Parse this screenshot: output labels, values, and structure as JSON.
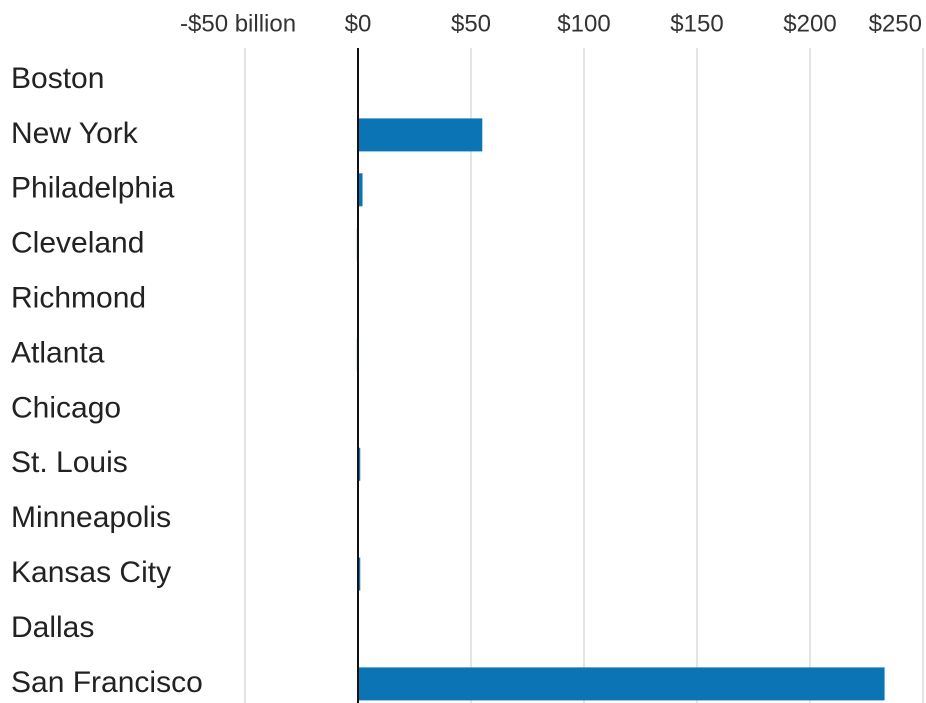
{
  "chart_data": {
    "type": "bar",
    "orientation": "horizontal",
    "categories": [
      "Boston",
      "New York",
      "Philadelphia",
      "Cleveland",
      "Richmond",
      "Atlanta",
      "Chicago",
      "St. Louis",
      "Minneapolis",
      "Kansas City",
      "Dallas",
      "San Francisco"
    ],
    "values": [
      0,
      55,
      2,
      -0.5,
      0,
      -0.5,
      0,
      1,
      0,
      1,
      0,
      233
    ],
    "color": "#0a74b4",
    "xlim": [
      -50,
      250
    ],
    "xticks": [
      {
        "value": -50,
        "label": "-$50 billion"
      },
      {
        "value": 0,
        "label": "$0"
      },
      {
        "value": 50,
        "label": "$50"
      },
      {
        "value": 100,
        "label": "$100"
      },
      {
        "value": 150,
        "label": "$150"
      },
      {
        "value": 200,
        "label": "$200"
      },
      {
        "value": 250,
        "label": "$250"
      }
    ],
    "grid": true
  }
}
